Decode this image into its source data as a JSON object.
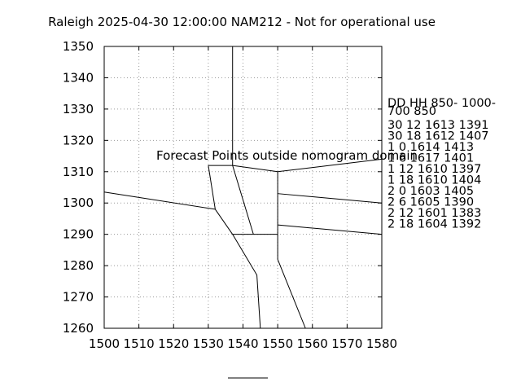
{
  "chart_data": {
    "type": "line",
    "title": "Raleigh 2025-04-30 12:00:00 NAM212 - Not for operational use",
    "xlim": [
      1500,
      1580
    ],
    "ylim": [
      1260,
      1350
    ],
    "x_ticks": [
      1500,
      1510,
      1520,
      1530,
      1540,
      1550,
      1560,
      1570,
      1580
    ],
    "y_ticks": [
      1260,
      1270,
      1280,
      1290,
      1300,
      1310,
      1320,
      1330,
      1340,
      1350
    ],
    "grid": true,
    "annotation": "Forecast Points outside nomogram domain",
    "annotation_color": "#ff0000",
    "series": [
      {
        "x": [
          1537,
          1537
        ],
        "y": [
          1350,
          1312
        ]
      },
      {
        "x": [
          1530,
          1537
        ],
        "y": [
          1312,
          1312
        ]
      },
      {
        "x": [
          1537,
          1550,
          1580
        ],
        "y": [
          1312,
          1310,
          1314
        ]
      },
      {
        "x": [
          1530,
          1532
        ],
        "y": [
          1312,
          1298
        ]
      },
      {
        "x": [
          1500,
          1532
        ],
        "y": [
          1303.5,
          1298
        ]
      },
      {
        "x": [
          1532,
          1537
        ],
        "y": [
          1298,
          1290
        ]
      },
      {
        "x": [
          1537,
          1543
        ],
        "y": [
          1312,
          1290
        ]
      },
      {
        "x": [
          1550,
          1550
        ],
        "y": [
          1310,
          1290
        ]
      },
      {
        "x": [
          1550,
          1580
        ],
        "y": [
          1303,
          1300
        ]
      },
      {
        "x": [
          1537,
          1550
        ],
        "y": [
          1290,
          1290
        ]
      },
      {
        "x": [
          1550,
          1580
        ],
        "y": [
          1293,
          1290
        ]
      },
      {
        "x": [
          1537,
          1544,
          1545
        ],
        "y": [
          1290,
          1277,
          1260
        ]
      },
      {
        "x": [
          1550,
          1550,
          1558
        ],
        "y": [
          1290,
          1282,
          1260
        ]
      }
    ],
    "legend_header": [
      "DD   HH 850- 1000-",
      "     700   850"
    ],
    "legend_rows": [
      "30 12 1613 1391",
      "30 18 1612 1407",
      "1  0 1614 1413",
      "1  6 1617 1401",
      "1 12 1610 1397",
      "1 18 1610 1404",
      "2  0 1603 1405",
      "2  6 1605 1390",
      "2 12 1601 1383",
      "2 18 1604 1392"
    ]
  }
}
